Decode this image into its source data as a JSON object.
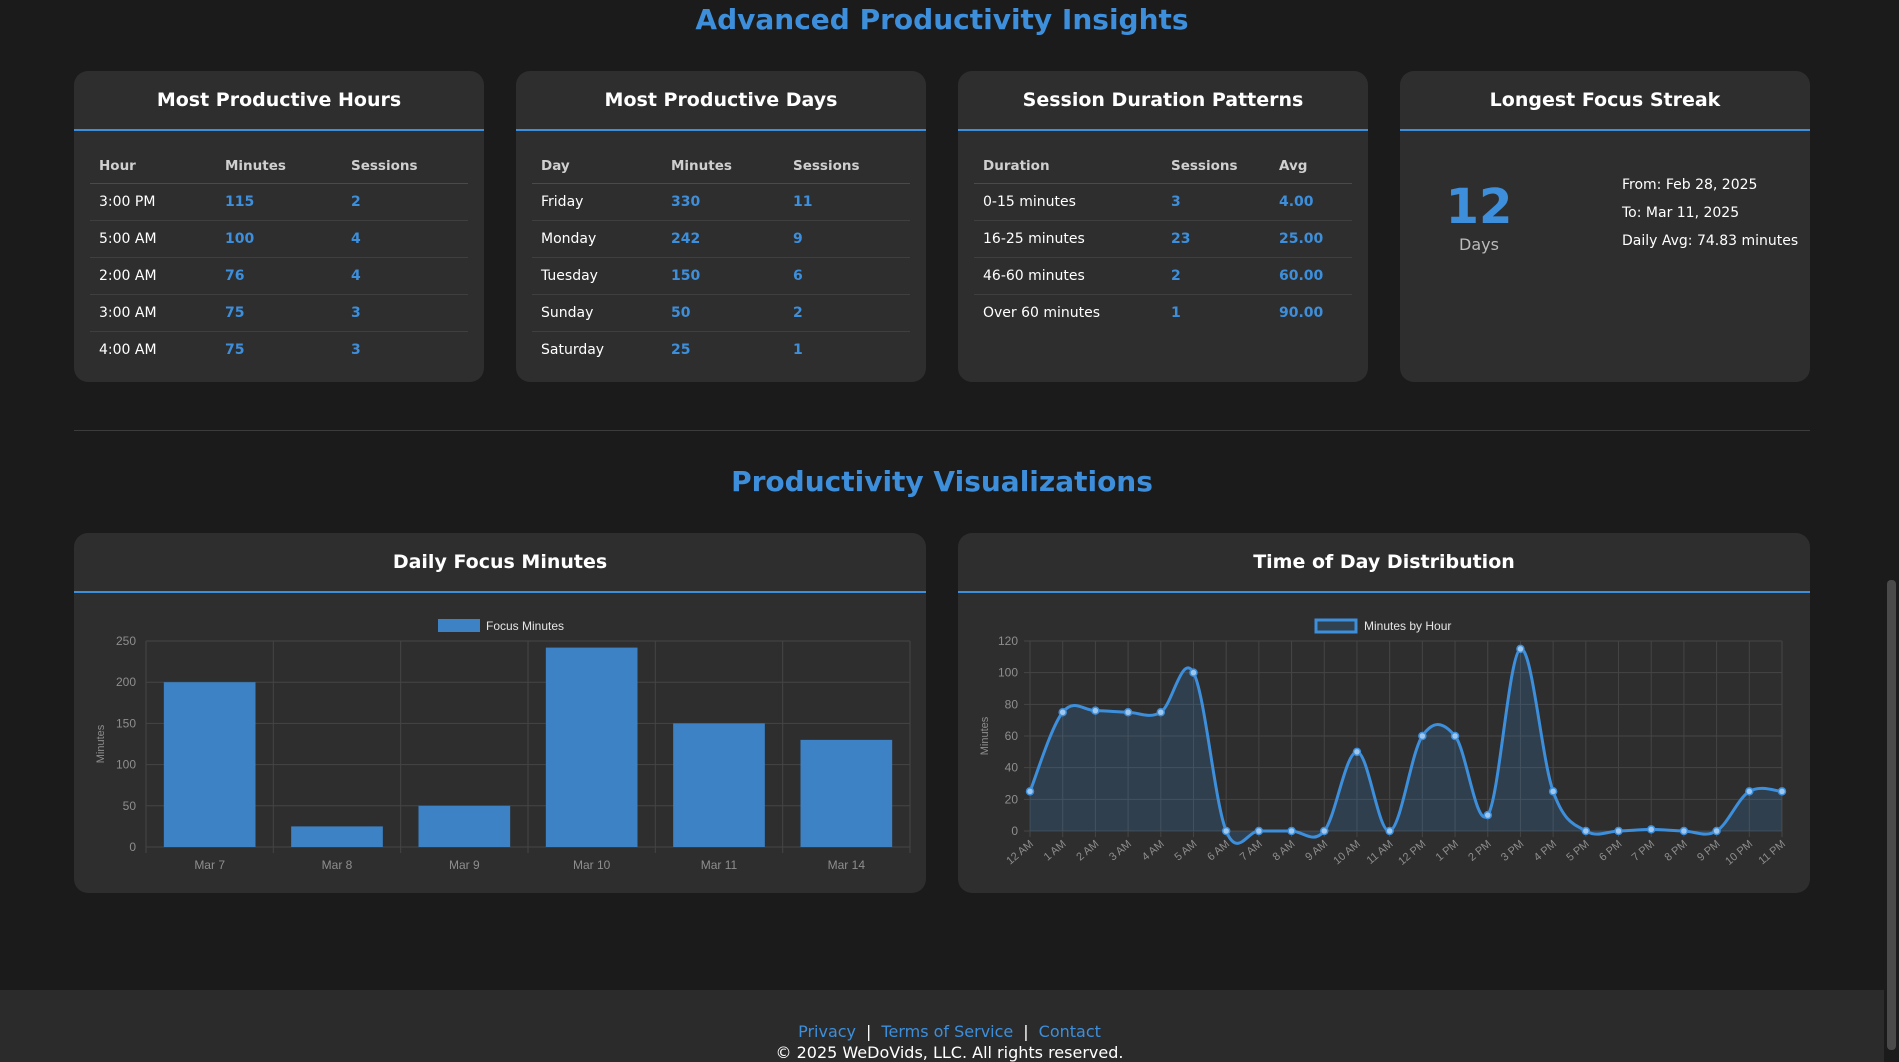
{
  "insights": {
    "title": "Advanced Productivity Insights",
    "hours": {
      "title": "Most Productive Hours",
      "headers": [
        "Hour",
        "Minutes",
        "Sessions"
      ],
      "rows": [
        [
          "3:00 PM",
          "115",
          "2"
        ],
        [
          "5:00 AM",
          "100",
          "4"
        ],
        [
          "2:00 AM",
          "76",
          "4"
        ],
        [
          "3:00 AM",
          "75",
          "3"
        ],
        [
          "4:00 AM",
          "75",
          "3"
        ]
      ]
    },
    "days": {
      "title": "Most Productive Days",
      "headers": [
        "Day",
        "Minutes",
        "Sessions"
      ],
      "rows": [
        [
          "Friday",
          "330",
          "11"
        ],
        [
          "Monday",
          "242",
          "9"
        ],
        [
          "Tuesday",
          "150",
          "6"
        ],
        [
          "Sunday",
          "50",
          "2"
        ],
        [
          "Saturday",
          "25",
          "1"
        ]
      ]
    },
    "duration": {
      "title": "Session Duration Patterns",
      "headers": [
        "Duration",
        "Sessions",
        "Avg"
      ],
      "rows": [
        [
          "0-15 minutes",
          "3",
          "4.00"
        ],
        [
          "16-25 minutes",
          "23",
          "25.00"
        ],
        [
          "46-60 minutes",
          "2",
          "60.00"
        ],
        [
          "Over 60 minutes",
          "1",
          "90.00"
        ]
      ]
    },
    "streak": {
      "title": "Longest Focus Streak",
      "value": "12",
      "unit": "Days",
      "from": "From: Feb 28, 2025",
      "to": "To: Mar 11, 2025",
      "daily_avg": "Daily Avg: 74.83 minutes"
    }
  },
  "visualizations": {
    "title": "Productivity Visualizations",
    "daily_title": "Daily Focus Minutes",
    "time_title": "Time of Day Distribution"
  },
  "chart_data": [
    {
      "type": "bar",
      "title": "",
      "categories": [
        "Mar 7",
        "Mar 8",
        "Mar 9",
        "Mar 10",
        "Mar 11",
        "Mar 14"
      ],
      "series": [
        {
          "name": "Focus Minutes",
          "values": [
            200,
            25,
            50,
            242,
            150,
            130
          ]
        }
      ],
      "ylabel": "Minutes",
      "xlabel": "",
      "ylim": [
        0,
        250
      ],
      "yticks": [
        0,
        50,
        100,
        150,
        200,
        250
      ],
      "legend": "top",
      "grid": true,
      "color": "#3d82c4"
    },
    {
      "type": "line",
      "title": "",
      "categories": [
        "12 AM",
        "1 AM",
        "2 AM",
        "3 AM",
        "4 AM",
        "5 AM",
        "6 AM",
        "7 AM",
        "8 AM",
        "9 AM",
        "10 AM",
        "11 AM",
        "12 PM",
        "1 PM",
        "2 PM",
        "3 PM",
        "4 PM",
        "5 PM",
        "6 PM",
        "7 PM",
        "8 PM",
        "9 PM",
        "10 PM",
        "11 PM"
      ],
      "series": [
        {
          "name": "Minutes by Hour",
          "values": [
            25,
            75,
            76,
            75,
            75,
            100,
            0,
            0,
            0,
            0,
            50,
            0,
            60,
            60,
            10,
            115,
            25,
            0,
            0,
            1,
            0,
            0,
            25,
            25
          ]
        }
      ],
      "ylabel": "Minutes",
      "xlabel": "",
      "ylim": [
        0,
        120
      ],
      "yticks": [
        0,
        20,
        40,
        60,
        80,
        100,
        120
      ],
      "legend": "top",
      "grid": true,
      "fill": true,
      "color": "#3d8fdc"
    }
  ],
  "footer": {
    "links": [
      "Privacy",
      "Terms of Service",
      "Contact"
    ],
    "separator": "|",
    "copyright": "© 2025 WeDoVids, LLC. All rights reserved."
  }
}
